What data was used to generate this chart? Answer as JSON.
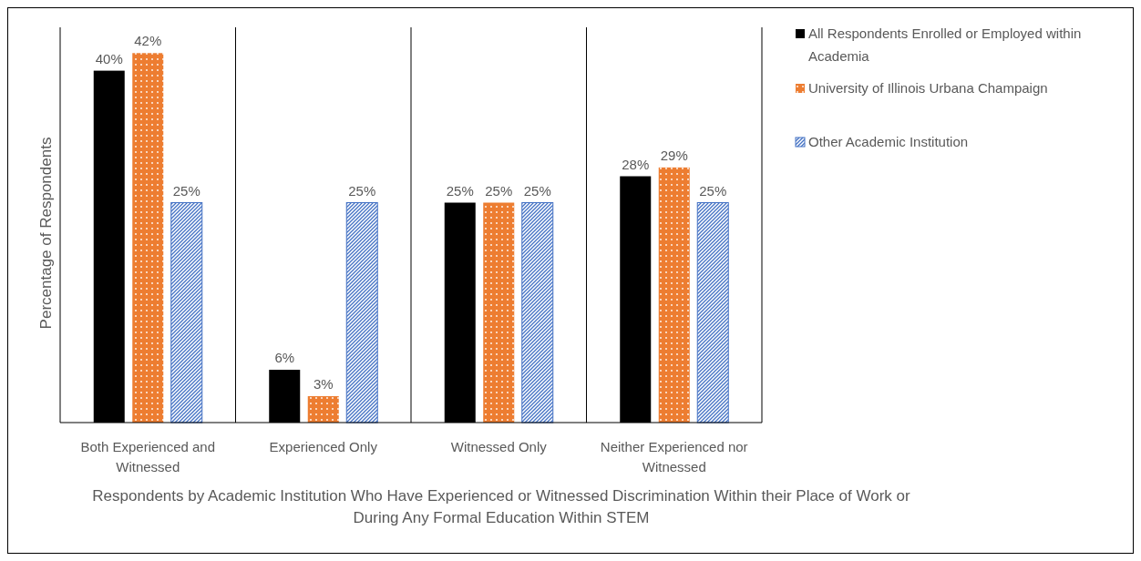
{
  "chart_data": {
    "type": "bar",
    "xlabel": "Respondents by Academic Institution Who Have Experienced or Witnessed Discrimination Within their Place of Work or During Any Formal Education Within STEM",
    "ylabel": "Percentage of Respondents",
    "categories": [
      "Both Experienced and Witnessed",
      "Experienced Only",
      "Witnessed Only",
      "Neither Experienced nor Witnessed"
    ],
    "series": [
      {
        "name": "All Respondents Enrolled or Employed within Academia",
        "color": "#000000",
        "values": [
          40,
          6,
          25,
          28
        ],
        "value_labels": [
          "40%",
          "6%",
          "25%",
          "28%"
        ]
      },
      {
        "name": "University of Illinois Urbana Champaign",
        "color": "#ed7d31",
        "values": [
          42,
          3,
          25,
          29
        ],
        "value_labels": [
          "42%",
          "3%",
          "25%",
          "29%"
        ]
      },
      {
        "name": "Other Academic Institution",
        "color": "#4472c4",
        "values": [
          25,
          25,
          25,
          25
        ],
        "value_labels": [
          "25%",
          "25%",
          "25%",
          "25%"
        ]
      }
    ],
    "legend": "right"
  }
}
